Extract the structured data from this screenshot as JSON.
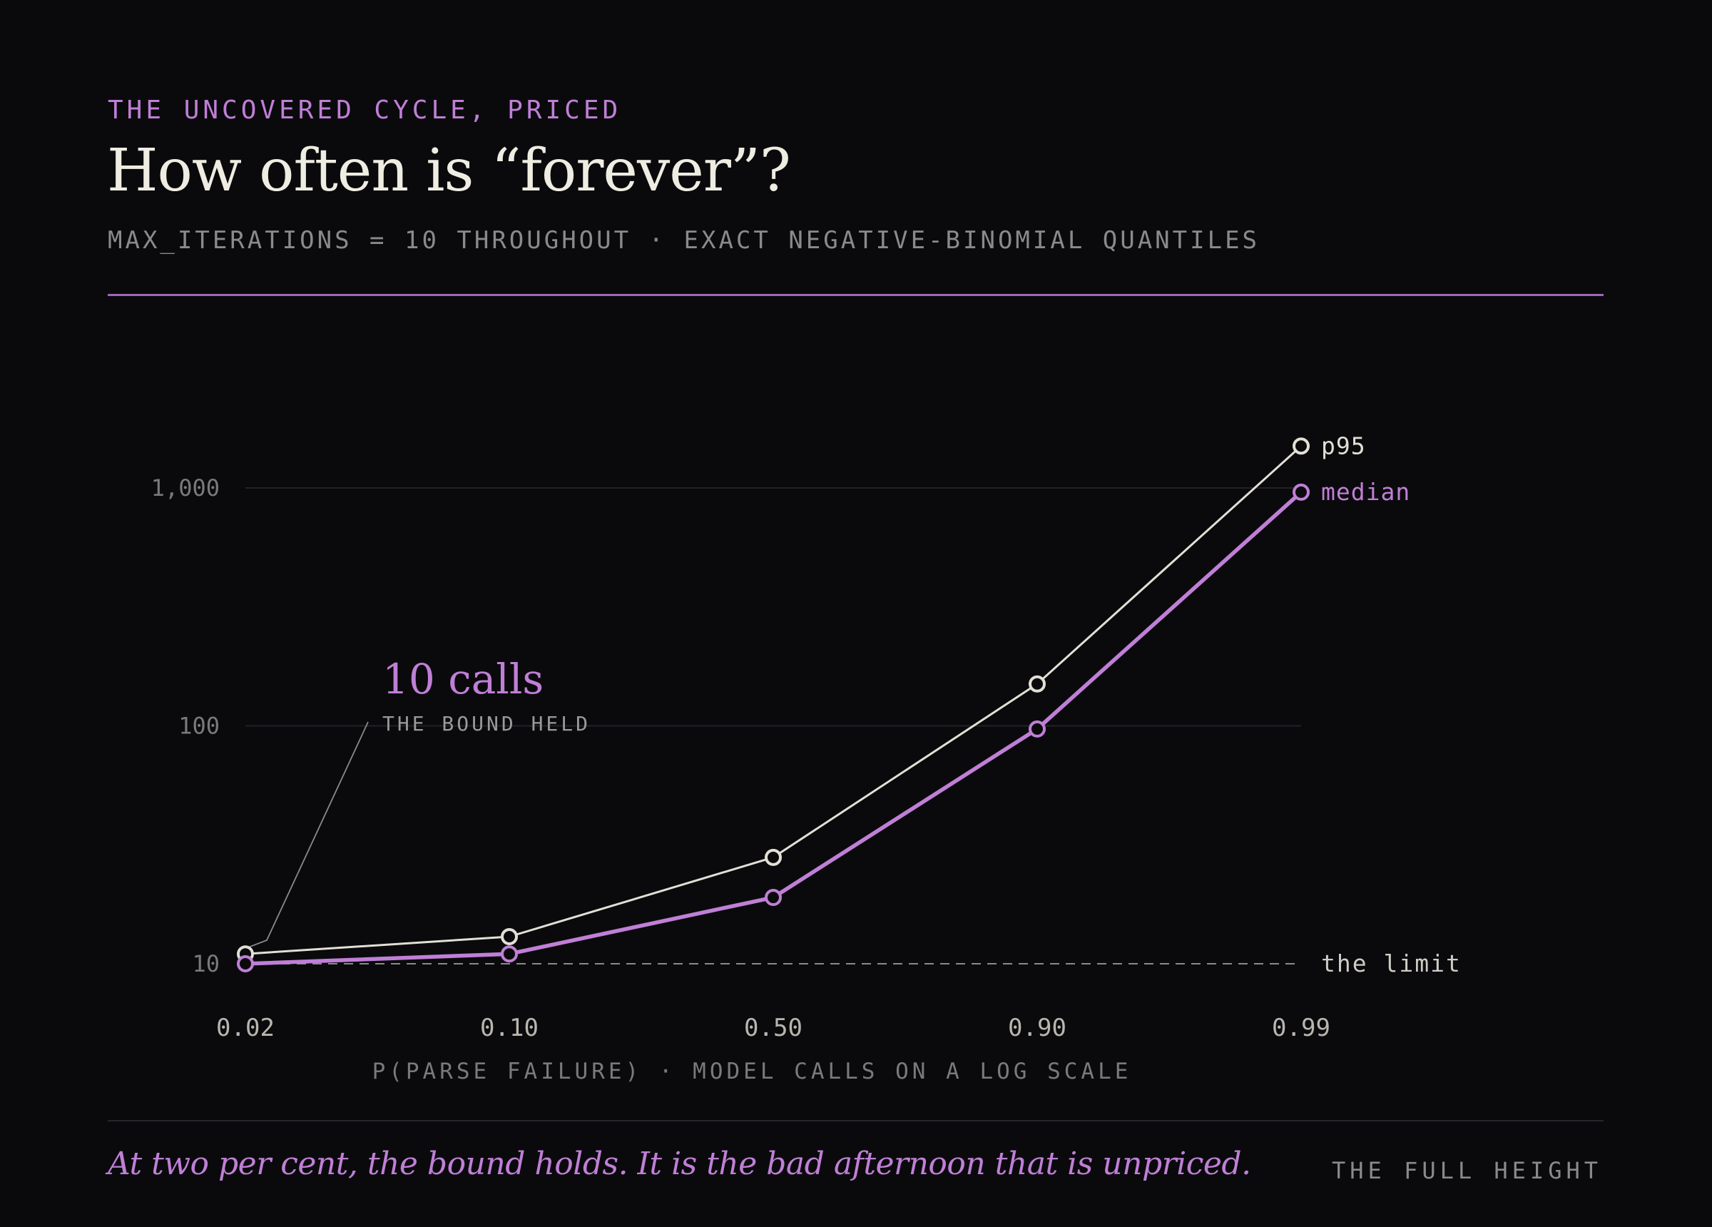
{
  "header": {
    "kicker": "THE UNCOVERED CYCLE, PRICED",
    "title": "How often is “forever”?",
    "subtitle": "MAX_ITERATIONS = 10 THROUGHOUT · EXACT NEGATIVE-BINOMIAL QUANTILES"
  },
  "footer": {
    "note": "At two per cent, the bound holds. It is the bad afternoon that is unpriced.",
    "tag": "THE FULL HEIGHT"
  },
  "colors": {
    "accent": "#c07fd6",
    "p95": "#e2dfd5",
    "background": "#0a0a0d",
    "rule": "#a066be"
  },
  "chart_data": {
    "type": "line",
    "title": "How often is “forever”?",
    "xlabel": "P(PARSE FAILURE) · MODEL CALLS ON A LOG SCALE",
    "ylabel": "",
    "x_scale": "categorical",
    "y_scale": "log",
    "ylim": [
      8,
      2000
    ],
    "categories": [
      "0.02",
      "0.10",
      "0.50",
      "0.90",
      "0.99"
    ],
    "y_ticks": [
      {
        "value": 10,
        "label": "10"
      },
      {
        "value": 100,
        "label": "100"
      },
      {
        "value": 1000,
        "label": "1,000"
      }
    ],
    "series": [
      {
        "name": "p95",
        "values": [
          11,
          13,
          28,
          150,
          1500
        ]
      },
      {
        "name": "median",
        "values": [
          10,
          11,
          19,
          97,
          960
        ]
      }
    ],
    "reference_line": {
      "value": 10,
      "label": "the limit"
    },
    "annotation": {
      "category": "0.02",
      "headline": "10 calls",
      "caption": "THE BOUND HELD"
    },
    "grid": true,
    "legend": "direct labels at line ends"
  }
}
